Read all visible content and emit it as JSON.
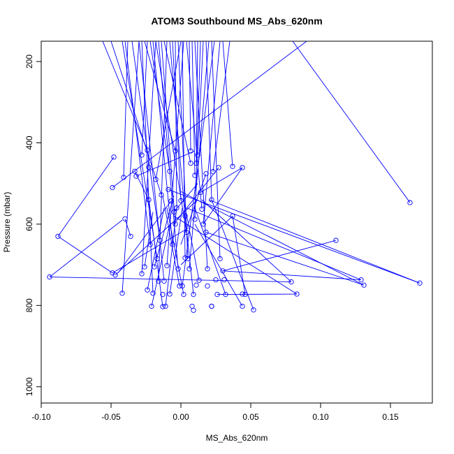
{
  "chart_data": {
    "type": "line",
    "title": "ATOM3 Southbound MS_Abs_620nm",
    "xlabel": "MS_Abs_620nm",
    "ylabel": "Pressure (mbar)",
    "xlim": [
      -0.1,
      0.18
    ],
    "ylim": [
      1040,
      150
    ],
    "y_reversed": true,
    "x_ticks": [
      -0.1,
      -0.05,
      0.0,
      0.05,
      0.1,
      0.15
    ],
    "x_tick_labels": [
      "-0.10",
      "-0.05",
      "0.00",
      "0.05",
      "0.10",
      "0.15"
    ],
    "y_ticks": [
      200,
      400,
      600,
      800,
      1000
    ],
    "y_tick_labels": [
      "200",
      "400",
      "600",
      "800",
      "1000"
    ],
    "grid": false,
    "legend": "none",
    "marker": "open-circle",
    "series_color": "#0000ff",
    "points": [
      [
        0.164,
        547
      ],
      [
        0.171,
        745
      ],
      [
        0.131,
        750
      ],
      [
        0.129,
        737
      ],
      [
        0.111,
        640
      ],
      [
        0.083,
        772
      ],
      [
        0.079,
        742
      ],
      [
        0.052,
        811
      ],
      [
        0.046,
        773
      ],
      [
        0.044,
        772
      ],
      [
        0.044,
        802
      ],
      [
        0.044,
        461
      ],
      [
        0.037,
        458
      ],
      [
        0.037,
        580
      ],
      [
        0.032,
        773
      ],
      [
        0.031,
        737
      ],
      [
        0.028,
        685
      ],
      [
        0.027,
        461
      ],
      [
        0.026,
        773
      ],
      [
        0.025,
        737
      ],
      [
        0.022,
        802
      ],
      [
        0.022,
        802
      ],
      [
        0.023,
        471
      ],
      [
        0.022,
        540
      ],
      [
        0.019,
        710
      ],
      [
        0.019,
        752
      ],
      [
        0.018,
        476
      ],
      [
        0.016,
        600
      ],
      [
        0.015,
        563
      ],
      [
        0.013,
        738
      ],
      [
        0.012,
        430
      ],
      [
        0.011,
        450
      ],
      [
        0.011,
        750
      ],
      [
        0.01,
        480
      ],
      [
        0.01,
        588
      ],
      [
        0.009,
        773
      ],
      [
        0.009,
        812
      ],
      [
        0.008,
        802
      ],
      [
        0.007,
        420
      ],
      [
        0.007,
        450
      ],
      [
        0.006,
        710
      ],
      [
        0.005,
        685
      ],
      [
        0.004,
        620
      ],
      [
        0.003,
        683
      ],
      [
        0.003,
        580
      ],
      [
        0.002,
        773
      ],
      [
        0.001,
        752
      ],
      [
        0.0,
        542
      ],
      [
        -0.001,
        752
      ],
      [
        -0.002,
        710
      ],
      [
        -0.003,
        560
      ],
      [
        -0.004,
        420
      ],
      [
        -0.004,
        600
      ],
      [
        -0.005,
        570
      ],
      [
        -0.006,
        650
      ],
      [
        -0.007,
        543
      ],
      [
        -0.008,
        772
      ],
      [
        -0.008,
        470
      ],
      [
        -0.01,
        702
      ],
      [
        -0.011,
        802
      ],
      [
        -0.012,
        740
      ],
      [
        -0.013,
        803
      ],
      [
        -0.013,
        773
      ],
      [
        -0.014,
        528
      ],
      [
        -0.015,
        640
      ],
      [
        -0.016,
        740
      ],
      [
        -0.017,
        685
      ],
      [
        -0.018,
        490
      ],
      [
        -0.019,
        705
      ],
      [
        -0.02,
        770
      ],
      [
        -0.021,
        802
      ],
      [
        -0.022,
        650
      ],
      [
        -0.023,
        540
      ],
      [
        -0.023,
        460
      ],
      [
        -0.024,
        418
      ],
      [
        -0.024,
        762
      ],
      [
        -0.026,
        705
      ],
      [
        -0.028,
        722
      ],
      [
        -0.028,
        430
      ],
      [
        -0.032,
        482
      ],
      [
        -0.036,
        630
      ],
      [
        -0.04,
        587
      ],
      [
        -0.041,
        485
      ],
      [
        -0.042,
        770
      ],
      [
        -0.047,
        725
      ],
      [
        -0.049,
        720
      ],
      [
        -0.048,
        435
      ],
      [
        -0.049,
        510
      ],
      [
        -0.088,
        630
      ],
      [
        -0.094,
        730
      ],
      [
        -0.033,
        470
      ],
      [
        0.03,
        715
      ],
      [
        0.018,
        620
      ],
      [
        -0.009,
        515
      ],
      [
        0.014,
        522
      ]
    ],
    "segments": [
      [
        [
          0.164,
          547
        ],
        [
          0.08,
          150
        ]
      ],
      [
        [
          0.171,
          745
        ],
        [
          0.02,
          540
        ]
      ],
      [
        [
          0.131,
          750
        ],
        [
          0.0,
          520
        ]
      ],
      [
        [
          0.129,
          737
        ],
        [
          0.004,
          560
        ]
      ],
      [
        [
          0.111,
          640
        ],
        [
          0.03,
          715
        ]
      ],
      [
        [
          0.083,
          772
        ],
        [
          -0.005,
          580
        ]
      ],
      [
        [
          0.079,
          742
        ],
        [
          0.015,
          540
        ]
      ],
      [
        [
          0.052,
          811
        ],
        [
          0.022,
          540
        ]
      ],
      [
        [
          0.046,
          773
        ],
        [
          0.037,
          580
        ]
      ],
      [
        [
          0.044,
          802
        ],
        [
          0.01,
          600
        ]
      ],
      [
        [
          0.044,
          461
        ],
        [
          0.016,
          600
        ]
      ],
      [
        [
          0.037,
          458
        ],
        [
          0.03,
          150
        ]
      ],
      [
        [
          0.037,
          580
        ],
        [
          0.0,
          700
        ]
      ],
      [
        [
          0.032,
          773
        ],
        [
          0.01,
          560
        ]
      ],
      [
        [
          0.028,
          685
        ],
        [
          0.022,
          150
        ]
      ],
      [
        [
          0.027,
          461
        ],
        [
          -0.005,
          600
        ]
      ],
      [
        [
          0.026,
          773
        ],
        [
          0.083,
          772
        ]
      ],
      [
        [
          0.023,
          471
        ],
        [
          0.035,
          150
        ]
      ],
      [
        [
          0.022,
          540
        ],
        [
          0.018,
          150
        ]
      ],
      [
        [
          0.019,
          710
        ],
        [
          0.01,
          150
        ]
      ],
      [
        [
          0.018,
          476
        ],
        [
          0.0,
          650
        ]
      ],
      [
        [
          0.016,
          600
        ],
        [
          0.028,
          150
        ]
      ],
      [
        [
          0.015,
          563
        ],
        [
          0.004,
          150
        ]
      ],
      [
        [
          0.013,
          738
        ],
        [
          0.002,
          540
        ]
      ],
      [
        [
          0.012,
          430
        ],
        [
          0.016,
          150
        ]
      ],
      [
        [
          0.011,
          450
        ],
        [
          0.012,
          150
        ]
      ],
      [
        [
          0.01,
          480
        ],
        [
          0.008,
          150
        ]
      ],
      [
        [
          0.01,
          588
        ],
        [
          0.014,
          150
        ]
      ],
      [
        [
          0.009,
          773
        ],
        [
          0.003,
          580
        ]
      ],
      [
        [
          0.007,
          420
        ],
        [
          0.006,
          150
        ]
      ],
      [
        [
          0.007,
          450
        ],
        [
          -0.012,
          150
        ]
      ],
      [
        [
          0.006,
          710
        ],
        [
          0.02,
          150
        ]
      ],
      [
        [
          0.005,
          685
        ],
        [
          -0.002,
          150
        ]
      ],
      [
        [
          0.004,
          620
        ],
        [
          -0.018,
          150
        ]
      ],
      [
        [
          0.003,
          683
        ],
        [
          0.001,
          150
        ]
      ],
      [
        [
          0.003,
          580
        ],
        [
          -0.008,
          150
        ]
      ],
      [
        [
          0.002,
          773
        ],
        [
          -0.01,
          560
        ]
      ],
      [
        [
          0.001,
          752
        ],
        [
          0.024,
          150
        ]
      ],
      [
        [
          0.0,
          542
        ],
        [
          -0.006,
          150
        ]
      ],
      [
        [
          -0.001,
          752
        ],
        [
          -0.013,
          530
        ]
      ],
      [
        [
          -0.002,
          710
        ],
        [
          -0.016,
          150
        ]
      ],
      [
        [
          -0.003,
          560
        ],
        [
          -0.004,
          150
        ]
      ],
      [
        [
          -0.004,
          420
        ],
        [
          -0.026,
          150
        ]
      ],
      [
        [
          -0.004,
          600
        ],
        [
          -0.014,
          150
        ]
      ],
      [
        [
          -0.005,
          570
        ],
        [
          0.012,
          500
        ]
      ],
      [
        [
          -0.006,
          650
        ],
        [
          -0.02,
          150
        ]
      ],
      [
        [
          -0.007,
          543
        ],
        [
          -0.045,
          720
        ]
      ],
      [
        [
          -0.008,
          772
        ],
        [
          0.001,
          560
        ]
      ],
      [
        [
          -0.008,
          470
        ],
        [
          -0.022,
          150
        ]
      ],
      [
        [
          -0.01,
          702
        ],
        [
          0.002,
          150
        ]
      ],
      [
        [
          -0.011,
          802
        ],
        [
          -0.003,
          560
        ]
      ],
      [
        [
          -0.012,
          740
        ],
        [
          -0.03,
          150
        ]
      ],
      [
        [
          -0.013,
          803
        ],
        [
          -0.024,
          510
        ]
      ],
      [
        [
          -0.014,
          528
        ],
        [
          -0.05,
          150
        ]
      ],
      [
        [
          -0.015,
          640
        ],
        [
          -0.035,
          150
        ]
      ],
      [
        [
          -0.016,
          740
        ],
        [
          -0.01,
          150
        ]
      ],
      [
        [
          -0.017,
          685
        ],
        [
          -0.042,
          150
        ]
      ],
      [
        [
          -0.018,
          490
        ],
        [
          0.0,
          150
        ]
      ],
      [
        [
          -0.019,
          705
        ],
        [
          -0.005,
          530
        ]
      ],
      [
        [
          -0.02,
          770
        ],
        [
          -0.028,
          150
        ]
      ],
      [
        [
          -0.021,
          802
        ],
        [
          -0.008,
          600
        ]
      ],
      [
        [
          -0.022,
          650
        ],
        [
          -0.04,
          150
        ]
      ],
      [
        [
          -0.023,
          540
        ],
        [
          -0.033,
          470
        ]
      ],
      [
        [
          -0.024,
          418
        ],
        [
          -0.056,
          150
        ]
      ],
      [
        [
          -0.024,
          762
        ],
        [
          -0.012,
          560
        ]
      ],
      [
        [
          -0.026,
          705
        ],
        [
          -0.02,
          570
        ]
      ],
      [
        [
          -0.028,
          722
        ],
        [
          -0.018,
          150
        ]
      ],
      [
        [
          -0.028,
          430
        ],
        [
          -0.024,
          150
        ]
      ],
      [
        [
          -0.032,
          482
        ],
        [
          0.01,
          420
        ]
      ],
      [
        [
          -0.036,
          630
        ],
        [
          -0.04,
          587
        ]
      ],
      [
        [
          -0.041,
          485
        ],
        [
          -0.038,
          150
        ]
      ],
      [
        [
          -0.042,
          770
        ],
        [
          -0.03,
          150
        ]
      ],
      [
        [
          -0.047,
          725
        ],
        [
          0.012,
          540
        ]
      ],
      [
        [
          -0.049,
          720
        ],
        [
          0.005,
          610
        ]
      ],
      [
        [
          -0.048,
          435
        ],
        [
          -0.088,
          630
        ]
      ],
      [
        [
          -0.049,
          510
        ],
        [
          0.09,
          150
        ]
      ],
      [
        [
          -0.088,
          630
        ],
        [
          -0.049,
          720
        ]
      ],
      [
        [
          -0.094,
          730
        ],
        [
          0.079,
          742
        ]
      ],
      [
        [
          -0.094,
          730
        ],
        [
          -0.042,
          590
        ]
      ],
      [
        [
          0.03,
          715
        ],
        [
          0.129,
          737
        ]
      ],
      [
        [
          0.018,
          620
        ],
        [
          0.131,
          750
        ]
      ],
      [
        [
          -0.009,
          515
        ],
        [
          0.171,
          745
        ]
      ],
      [
        [
          0.014,
          522
        ],
        [
          0.044,
          461
        ]
      ]
    ]
  }
}
